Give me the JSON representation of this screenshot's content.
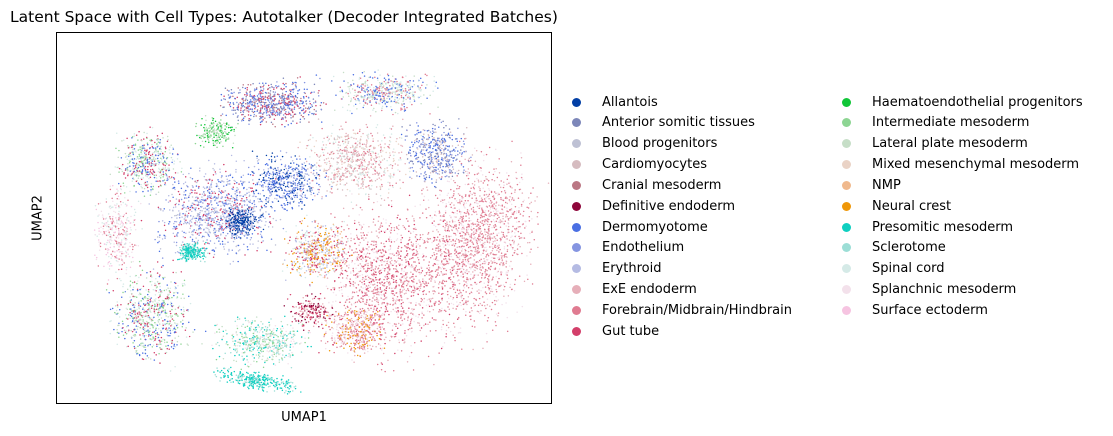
{
  "chart_data": {
    "type": "scatter",
    "title": "Latent Space with Cell Types: Autotalker (Decoder Integrated Batches)",
    "xlabel": "UMAP1",
    "ylabel": "UMAP2",
    "grid": false,
    "ticks": false,
    "legend_position": "right",
    "legend_columns": 2,
    "legend": [
      {
        "name": "Allantois",
        "color": "#023fa5"
      },
      {
        "name": "Anterior somitic tissues",
        "color": "#7d87b9"
      },
      {
        "name": "Blood progenitors",
        "color": "#bec1d4"
      },
      {
        "name": "Cardiomyocytes",
        "color": "#d6bcc0"
      },
      {
        "name": "Cranial mesoderm",
        "color": "#bb7784"
      },
      {
        "name": "Definitive endoderm",
        "color": "#8e063b"
      },
      {
        "name": "Dermomyotome",
        "color": "#4a6fe3"
      },
      {
        "name": "Endothelium",
        "color": "#8595e1"
      },
      {
        "name": "Erythroid",
        "color": "#b5bbe3"
      },
      {
        "name": "ExE endoderm",
        "color": "#e6afb9"
      },
      {
        "name": "Forebrain/Midbrain/Hindbrain",
        "color": "#e07b91"
      },
      {
        "name": "Gut tube",
        "color": "#d33f6a"
      },
      {
        "name": "Haematoendothelial progenitors",
        "color": "#11c638"
      },
      {
        "name": "Intermediate mesoderm",
        "color": "#8dd593"
      },
      {
        "name": "Lateral plate mesoderm",
        "color": "#c6dec7"
      },
      {
        "name": "Mixed mesenchymal mesoderm",
        "color": "#ead3c6"
      },
      {
        "name": "NMP",
        "color": "#f0b98d"
      },
      {
        "name": "Neural crest",
        "color": "#ef9708"
      },
      {
        "name": "Presomitic mesoderm",
        "color": "#0fcfc0"
      },
      {
        "name": "Sclerotome",
        "color": "#9cded6"
      },
      {
        "name": "Spinal cord",
        "color": "#d5eae7"
      },
      {
        "name": "Splanchnic mesoderm",
        "color": "#f3e1eb"
      },
      {
        "name": "Surface ectoderm",
        "color": "#f6c4e1"
      }
    ]
  }
}
